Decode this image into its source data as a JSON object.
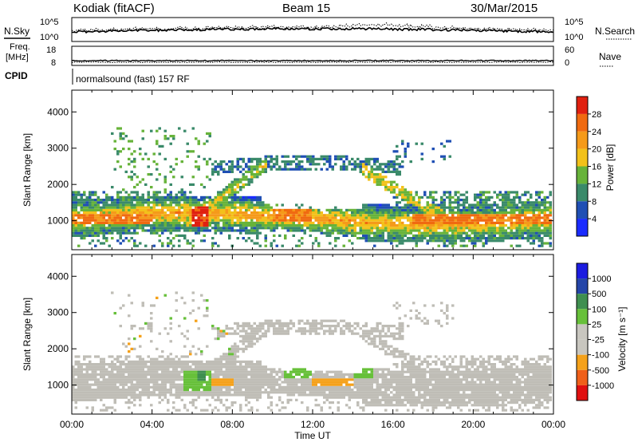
{
  "header": {
    "station": "Kodiak (fitACF)",
    "beam": "Beam 15",
    "date": "30/Mar/2015"
  },
  "noise_panel": {
    "left_label": "N.Sky",
    "right_label": "N.Search",
    "y_top": "10^5",
    "y_bottom": "10^0",
    "right_top": "10^5",
    "right_bottom": "10^0"
  },
  "freq_panel": {
    "left_label_1": "Freq.",
    "left_label_2": "[MHz]",
    "left_top": "18",
    "left_bottom": "8",
    "right_label": "Nave",
    "right_top": "60",
    "right_bottom": "0"
  },
  "cpid": {
    "label": "CPID",
    "text": "normalsound (fast) 157 RF"
  },
  "axes": {
    "ylabel": "Slant Range [km]",
    "yticks": [
      "1000",
      "2000",
      "3000",
      "4000"
    ],
    "ylim": [
      200,
      4600
    ],
    "xlabel": "Time UT",
    "xticks": [
      "00:00",
      "04:00",
      "08:00",
      "12:00",
      "16:00",
      "20:00",
      "00:00"
    ]
  },
  "colors": {
    "power": [
      "#1a2bff",
      "#1f4fb4",
      "#3a8a6a",
      "#67b33a",
      "#f2c11a",
      "#f59a1a",
      "#f06a10",
      "#e02010"
    ],
    "velocity": [
      "#e01010",
      "#f0601a",
      "#f5a11a",
      "#c8c6bf",
      "#c8c6bf",
      "#67c03a",
      "#3f8f50",
      "#2445a8",
      "#1c1ce0"
    ],
    "ground": "#bfbdb6"
  },
  "chart_data": [
    {
      "type": "heatmap",
      "name": "power",
      "colorbar_label": "Power [dB]",
      "colorbar_ticks": [
        "4",
        "8",
        "12",
        "16",
        "20",
        "24",
        "28"
      ],
      "colorbar_range": [
        0,
        32
      ],
      "x_range_hours": [
        0,
        24
      ],
      "y_range_km": [
        200,
        4600
      ],
      "features": [
        {
          "hours": [
            0,
            6
          ],
          "range_km": [
            800,
            1800
          ],
          "peak_db": 28
        },
        {
          "hours": [
            5.5,
            9.5
          ],
          "range_km": [
            700,
            2600
          ],
          "peak_db": 26
        },
        {
          "hours": [
            10,
            14.5
          ],
          "range_km": [
            900,
            2700
          ],
          "peak_db": 20
        },
        {
          "hours": [
            14.5,
            24
          ],
          "range_km": [
            700,
            2800
          ],
          "peak_db": 24
        }
      ]
    },
    {
      "type": "heatmap",
      "name": "velocity",
      "colorbar_label": "Velocity [m s⁻¹]",
      "colorbar_ticks": [
        "1000",
        "500",
        "100",
        "25",
        "-25",
        "-100",
        "-500",
        "-1000"
      ],
      "colorbar_range": [
        -1000,
        1000
      ],
      "x_range_hours": [
        0,
        24
      ],
      "y_range_km": [
        200,
        4600
      ],
      "features": [
        {
          "hours": [
            0,
            24
          ],
          "range_km": [
            800,
            1800
          ],
          "velocity_ms": 0
        },
        {
          "hours": [
            5.5,
            7
          ],
          "range_km": [
            800,
            1400
          ],
          "velocity_ms": 200
        },
        {
          "hours": [
            7,
            8
          ],
          "range_km": [
            1000,
            1200
          ],
          "velocity_ms": -200
        },
        {
          "hours": [
            10.5,
            12
          ],
          "range_km": [
            1200,
            1700
          ],
          "velocity_ms": 150
        },
        {
          "hours": [
            12,
            14
          ],
          "range_km": [
            1000,
            1200
          ],
          "velocity_ms": -150
        }
      ]
    }
  ]
}
